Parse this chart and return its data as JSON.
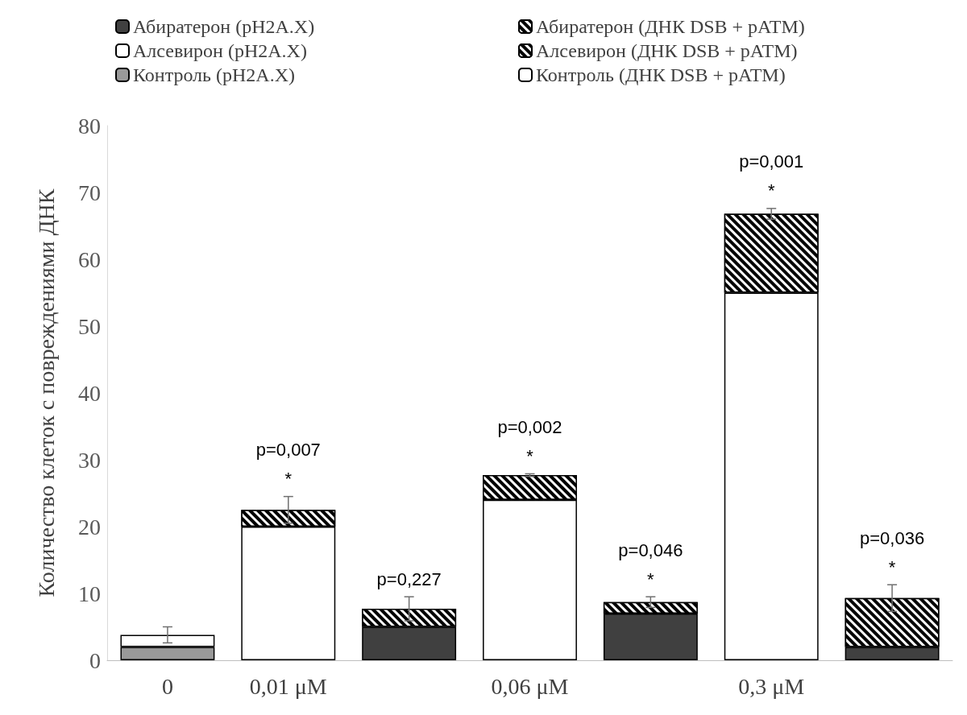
{
  "chart_data": {
    "type": "bar",
    "stacked": true,
    "ylabel": "Количество клеток с повреждениями ДНК",
    "categories": [
      "0",
      "0,01 μM",
      null,
      "0,06 μM",
      null,
      "0,3 μM",
      null
    ],
    "annotations": [
      {
        "text": "p=0,007\n*",
        "x": "0,01 μM",
        "y": 24.5
      },
      {
        "text": "p=0,227",
        "y": 9.5
      },
      {
        "text": "p=0,002\n*",
        "x": "0,06 μM",
        "y": 27.9
      },
      {
        "text": "p=0,046\n*",
        "y": 9.5
      },
      {
        "text": "p=0,001\n*",
        "x": "0,3 μM",
        "y": 67.6
      },
      {
        "text": "p=0,036\n*",
        "y": 11.3
      }
    ],
    "ylim": [
      0,
      80
    ],
    "yticks": [
      0,
      10,
      20,
      30,
      40,
      50,
      60,
      70,
      80
    ],
    "grid": false,
    "legend": "top",
    "series": [
      {
        "name": "Абиратерон (pH2A.X)",
        "color": "#404040",
        "values": [
          null,
          null,
          5,
          null,
          7,
          null,
          2
        ]
      },
      {
        "name": "Абиратерон (ДНК DSB + pATM)",
        "color": "#000000",
        "values": [
          null,
          null,
          2.7,
          null,
          1.7,
          null,
          7.3
        ],
        "errors": [
          null,
          null,
          1.8,
          null,
          0.8,
          null,
          2
        ]
      },
      {
        "name": "Алсевирон (pH2A.X)",
        "color": "#ffffff",
        "values": [
          null,
          20,
          null,
          24,
          null,
          55,
          null
        ]
      },
      {
        "name": "Алсевирон (ДНК DSB + pATM)",
        "color": "#000000",
        "values": [
          null,
          2.5,
          null,
          3.7,
          null,
          11.8,
          null
        ],
        "errors": [
          null,
          2,
          null,
          0.2,
          null,
          0.8,
          null
        ]
      },
      {
        "name": "Контроль (pH2A.X)",
        "color": "#999999",
        "values": [
          2,
          null,
          null,
          null,
          null,
          null,
          null
        ]
      },
      {
        "name": "Контроль (ДНК DSB + pATM)",
        "color": "#ffffff",
        "values": [
          1.8,
          null,
          null,
          null,
          null,
          null,
          null
        ],
        "errors": [
          1.2,
          null,
          null,
          null,
          null,
          null,
          null
        ]
      }
    ]
  }
}
